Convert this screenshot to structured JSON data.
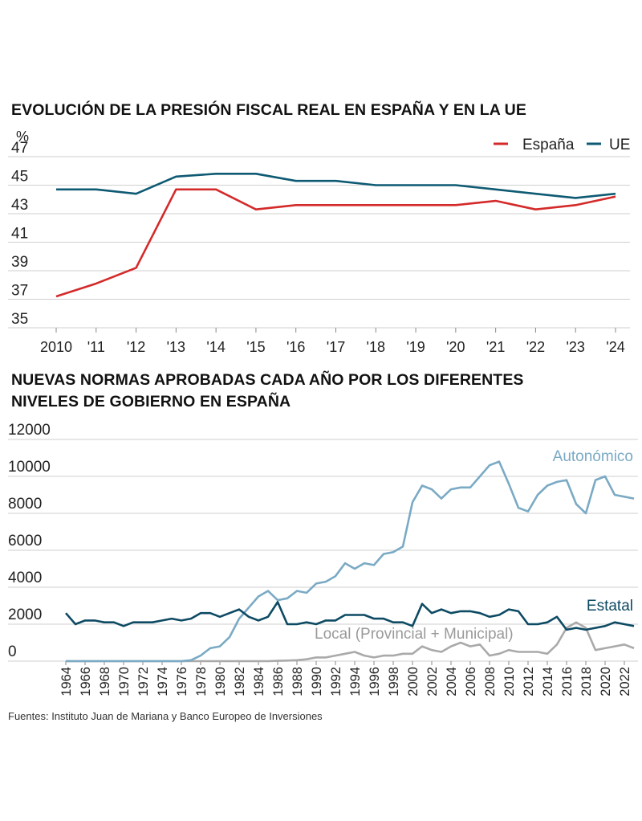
{
  "chart_data": [
    {
      "type": "line",
      "title": "EVOLUCIÓN DE LA PRESIÓN FISCAL REAL EN ESPAÑA Y EN LA UE",
      "ylabel": "%",
      "ylim": [
        35,
        47
      ],
      "yticks": [
        35,
        37,
        39,
        41,
        43,
        45,
        47
      ],
      "categories": [
        "2010",
        "'11",
        "'12",
        "'13",
        "'14",
        "'15",
        "'16",
        "'17",
        "'18",
        "'19",
        "'20",
        "'21",
        "'22",
        "'23",
        "'24"
      ],
      "grid": true,
      "legend": "top-right",
      "series": [
        {
          "name": "España",
          "color": "#d42a2a",
          "values": [
            37.2,
            38.1,
            39.2,
            44.7,
            44.7,
            43.3,
            43.6,
            43.6,
            43.6,
            43.6,
            43.6,
            43.9,
            43.3,
            43.6,
            44.2
          ]
        },
        {
          "name": "UE",
          "color": "#0e5a73",
          "values": [
            44.7,
            44.7,
            44.4,
            45.6,
            45.8,
            45.8,
            45.3,
            45.3,
            45.0,
            45.0,
            45.0,
            44.7,
            44.4,
            44.1,
            44.4
          ]
        }
      ]
    },
    {
      "type": "line",
      "title": "NUEVAS NORMAS APROBADAS CADA AÑO POR LOS DIFERENTES NIVELES DE GOBIERNO EN ESPAÑA",
      "title_lines": [
        "NUEVAS NORMAS APROBADAS CADA AÑO POR LOS DIFERENTES",
        "NIVELES DE GOBIERNO EN ESPAÑA"
      ],
      "ylim": [
        0,
        12000
      ],
      "yticks": [
        0,
        2000,
        4000,
        6000,
        8000,
        10000,
        12000
      ],
      "x": [
        1964,
        1965,
        1966,
        1967,
        1968,
        1969,
        1970,
        1971,
        1972,
        1973,
        1974,
        1975,
        1976,
        1977,
        1978,
        1979,
        1980,
        1981,
        1982,
        1983,
        1984,
        1985,
        1986,
        1987,
        1988,
        1989,
        1990,
        1991,
        1992,
        1993,
        1994,
        1995,
        1996,
        1997,
        1998,
        1999,
        2000,
        2001,
        2002,
        2003,
        2004,
        2005,
        2006,
        2007,
        2008,
        2009,
        2010,
        2011,
        2012,
        2013,
        2014,
        2015,
        2016,
        2017,
        2018,
        2019,
        2020,
        2021,
        2022,
        2023
      ],
      "xticks": [
        "1964",
        "1966",
        "1968",
        "1970",
        "1972",
        "1974",
        "1976",
        "1978",
        "1980",
        "1982",
        "1984",
        "1986",
        "1988",
        "1990",
        "1992",
        "1994",
        "1996",
        "1998",
        "2000",
        "2002",
        "2004",
        "2006",
        "2008",
        "2010",
        "2012",
        "2014",
        "2016",
        "2018",
        "2020",
        "2022"
      ],
      "grid": true,
      "series": [
        {
          "name": "Autonómico",
          "color": "#7aaac4",
          "values": [
            0,
            0,
            0,
            0,
            0,
            0,
            0,
            0,
            0,
            0,
            0,
            0,
            0,
            50,
            300,
            700,
            800,
            1300,
            2300,
            2900,
            3500,
            3800,
            3300,
            3400,
            3800,
            3700,
            4200,
            4300,
            4600,
            5300,
            5000,
            5300,
            5200,
            5800,
            5900,
            6200,
            8600,
            9500,
            9300,
            8800,
            9300,
            9400,
            9400,
            10000,
            10600,
            10800,
            9600,
            8300,
            8100,
            9000,
            9500,
            9700,
            9800,
            8500,
            8000,
            9800,
            10000,
            9000,
            8900,
            8800
          ]
        },
        {
          "name": "Estatal",
          "color": "#0d4a63",
          "values": [
            2600,
            2000,
            2200,
            2200,
            2100,
            2100,
            1900,
            2100,
            2100,
            2100,
            2200,
            2300,
            2200,
            2300,
            2600,
            2600,
            2400,
            2600,
            2800,
            2400,
            2200,
            2400,
            3200,
            2000,
            2000,
            2100,
            2000,
            2200,
            2200,
            2500,
            2500,
            2500,
            2300,
            2300,
            2100,
            2100,
            1900,
            3100,
            2600,
            2800,
            2600,
            2700,
            2700,
            2600,
            2400,
            2500,
            2800,
            2700,
            2000,
            2000,
            2100,
            2400,
            1700,
            1800,
            1700,
            1800,
            1900,
            2100,
            2000,
            1900
          ]
        },
        {
          "name": "Local (Provincial + Municipal)",
          "color": "#aaaaaa",
          "values": [
            0,
            0,
            0,
            0,
            0,
            0,
            0,
            0,
            0,
            0,
            0,
            0,
            0,
            0,
            0,
            0,
            0,
            0,
            0,
            0,
            0,
            0,
            20,
            30,
            50,
            100,
            200,
            200,
            300,
            400,
            500,
            300,
            200,
            300,
            300,
            400,
            400,
            800,
            600,
            500,
            800,
            1000,
            800,
            900,
            300,
            400,
            600,
            500,
            500,
            500,
            400,
            900,
            1800,
            2100,
            1800,
            600,
            700,
            800,
            900,
            700
          ]
        }
      ]
    }
  ],
  "source": "Fuentes: Instituto Juan de Mariana y Banco Europeo de Inversiones"
}
